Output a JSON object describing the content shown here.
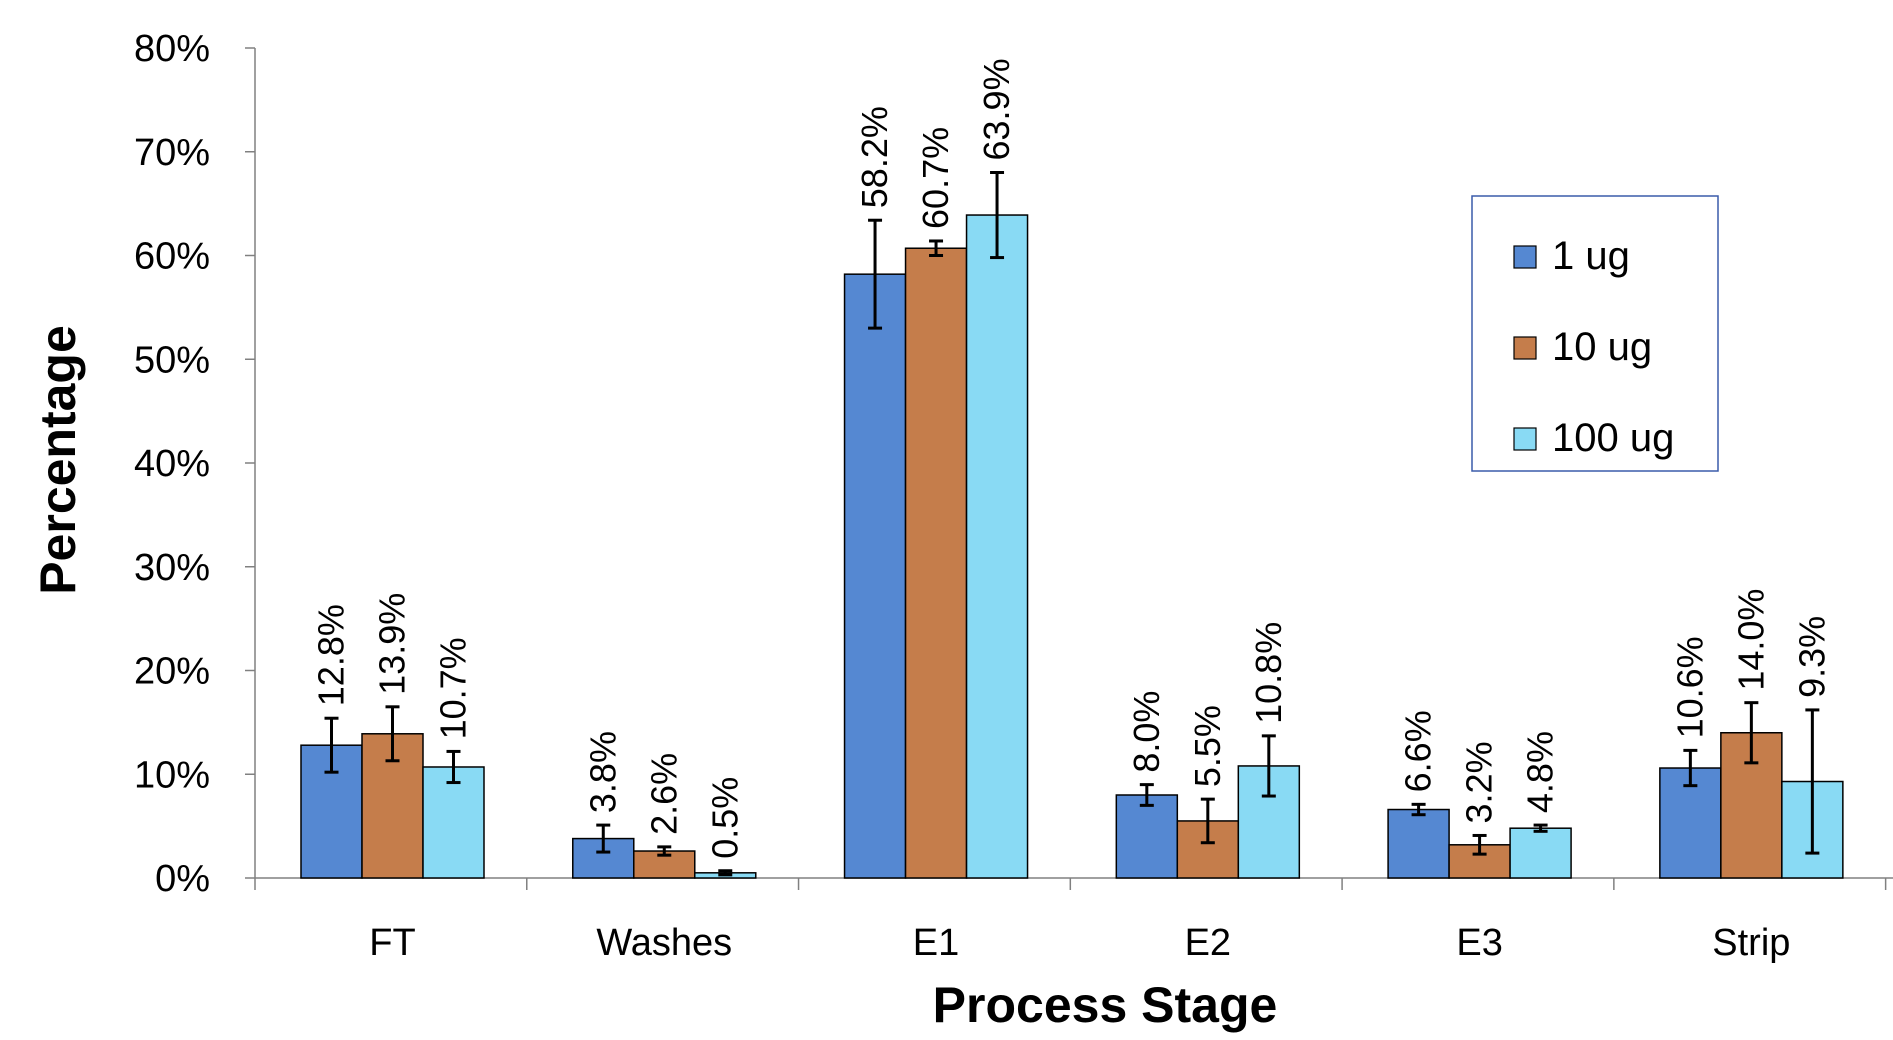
{
  "chart_data": {
    "type": "bar",
    "title": "",
    "xlabel": "Process Stage",
    "ylabel": "Percentage",
    "ylim": [
      0,
      80
    ],
    "yticks": [
      0,
      10,
      20,
      30,
      40,
      50,
      60,
      70,
      80
    ],
    "ytick_labels": [
      "0%",
      "10%",
      "20%",
      "30%",
      "40%",
      "50%",
      "60%",
      "70%",
      "80%"
    ],
    "categories": [
      "FT",
      "Washes",
      "E1",
      "E2",
      "E3",
      "Strip"
    ],
    "series": [
      {
        "name": "1 ug",
        "color": "#5588D2",
        "values": [
          12.8,
          3.8,
          58.2,
          8.0,
          6.6,
          10.6
        ],
        "labels": [
          "12.8%",
          "3.8%",
          "58.2%",
          "8.0%",
          "6.6%",
          "10.6%"
        ],
        "errors": [
          2.6,
          1.3,
          5.2,
          1.0,
          0.5,
          1.7
        ]
      },
      {
        "name": "10 ug",
        "color": "#C57D4B",
        "values": [
          13.9,
          2.6,
          60.7,
          5.5,
          3.2,
          14.0
        ],
        "labels": [
          "13.9%",
          "2.6%",
          "60.7%",
          "5.5%",
          "3.2%",
          "14.0%"
        ],
        "errors": [
          2.6,
          0.4,
          0.7,
          2.1,
          0.9,
          2.9
        ]
      },
      {
        "name": "100 ug",
        "color": "#89DAF4",
        "values": [
          10.7,
          0.5,
          63.9,
          10.8,
          4.8,
          9.3
        ],
        "labels": [
          "10.7%",
          "0.5%",
          "63.9%",
          "10.8%",
          "4.8%",
          "9.3%"
        ],
        "errors": [
          1.5,
          0.2,
          4.1,
          2.9,
          0.3,
          6.9
        ]
      }
    ],
    "error_bars": true,
    "grid": false,
    "legend_position": "right",
    "legend_border_color": "#3A5BAA",
    "bar_border_color": "#000000"
  }
}
